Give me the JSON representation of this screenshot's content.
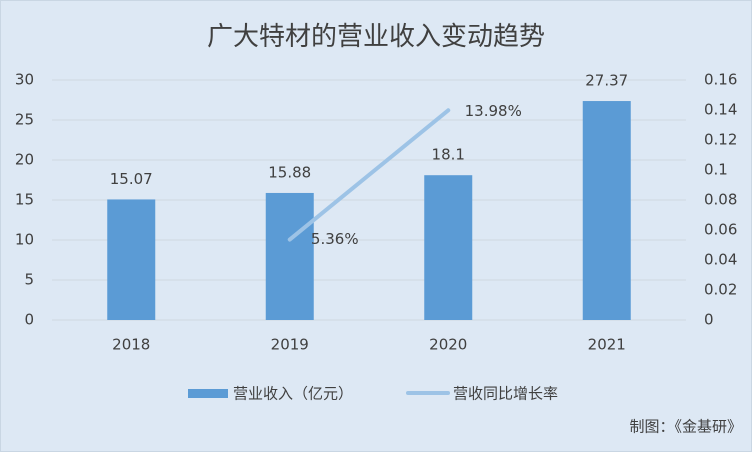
{
  "chart_data": {
    "type": "bar",
    "title": "广大特材的营业收入变动趋势",
    "categories": [
      "2018",
      "2019",
      "2020",
      "2021"
    ],
    "series": [
      {
        "name": "营业收入（亿元）",
        "type": "bar",
        "color": "#5b9bd5",
        "values": [
          15.07,
          15.88,
          18.1,
          27.37
        ]
      },
      {
        "name": "营收同比增长率",
        "type": "line",
        "axis": "y2",
        "color": "#9dc3e6",
        "values": [
          null,
          0.0536,
          0.1398,
          null
        ],
        "value_labels": [
          null,
          "5.36%",
          "13.98%",
          null
        ]
      }
    ],
    "ylim": [
      0,
      30
    ],
    "yticks": [
      0,
      5,
      10,
      15,
      20,
      25,
      30
    ],
    "y2lim": [
      0,
      0.16
    ],
    "y2ticks": [
      0,
      0.02,
      0.04,
      0.06,
      0.08,
      0.1,
      0.12,
      0.14,
      0.16
    ],
    "grid": true,
    "legend": "bottom",
    "source": "制图：《金基研》"
  }
}
